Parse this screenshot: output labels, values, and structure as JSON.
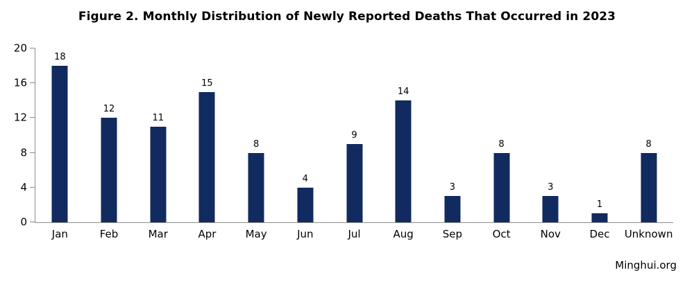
{
  "chart_data": {
    "type": "bar",
    "title": "Figure 2. Monthly Distribution of Newly Reported Deaths That Occurred in 2023",
    "categories": [
      "Jan",
      "Feb",
      "Mar",
      "Apr",
      "May",
      "Jun",
      "Jul",
      "Aug",
      "Sep",
      "Oct",
      "Nov",
      "Dec",
      "Unknown"
    ],
    "values": [
      18,
      12,
      11,
      15,
      8,
      4,
      9,
      14,
      3,
      8,
      3,
      1,
      8
    ],
    "xlabel": "",
    "ylabel": "",
    "ylim": [
      0,
      20
    ],
    "yticks": [
      0,
      4,
      8,
      12,
      16,
      20
    ],
    "grid": false,
    "legend": false,
    "bar_color": "#112a60",
    "axis_color": "#8c8c8c",
    "background_color": "#ffffff"
  },
  "footer": {
    "watermark": "Minghui.org"
  }
}
